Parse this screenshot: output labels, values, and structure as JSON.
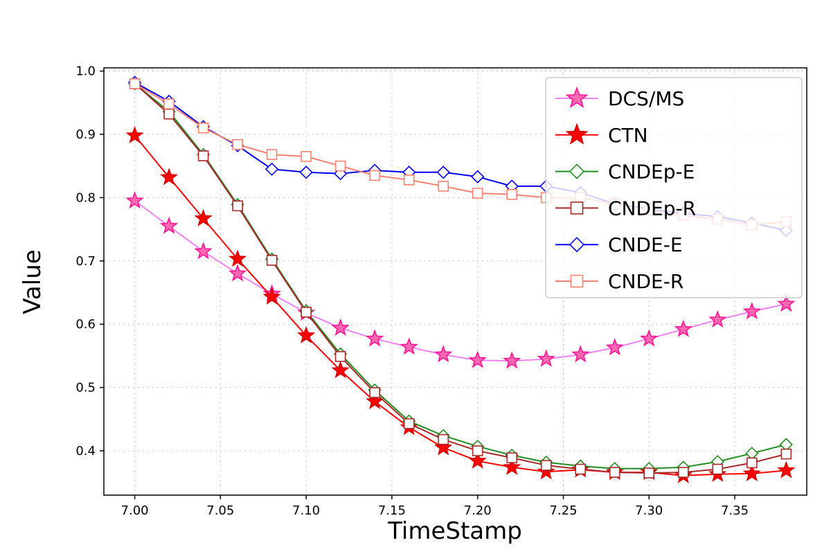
{
  "chart_data": {
    "type": "line",
    "title": "",
    "xlabel": "TimeStamp",
    "ylabel": "Value",
    "xlim": [
      6.982,
      7.392
    ],
    "ylim": [
      0.33,
      1.005
    ],
    "grid": true,
    "grid_color": "#BFBFBF",
    "background_color": "#FFFFFF",
    "legend_position": "upper right",
    "legend_border_color": "#CCCCCC",
    "x_ticks": {
      "values": [
        7.0,
        7.05,
        7.1,
        7.15,
        7.2,
        7.25,
        7.3,
        7.35
      ],
      "labels": [
        "7.00",
        "7.05",
        "7.10",
        "7.15",
        "7.20",
        "7.25",
        "7.30",
        "7.35"
      ]
    },
    "y_ticks": {
      "values": [
        0.4,
        0.5,
        0.6,
        0.7,
        0.8,
        0.9,
        1.0
      ],
      "labels": [
        "0.4",
        "0.5",
        "0.6",
        "0.7",
        "0.8",
        "0.9",
        "1.0"
      ]
    },
    "x": [
      7.0,
      7.02,
      7.04,
      7.06,
      7.08,
      7.1,
      7.12,
      7.14,
      7.16,
      7.18,
      7.2,
      7.22,
      7.24,
      7.26,
      7.28,
      7.3,
      7.32,
      7.34,
      7.36,
      7.38
    ],
    "series": [
      {
        "name": "DCS/MS",
        "marker": "star",
        "line_color": "#EE82EE",
        "marker_face": "#FF69B4",
        "marker_edge": "#FF1493",
        "values": [
          0.795,
          0.755,
          0.715,
          0.68,
          0.648,
          0.618,
          0.594,
          0.577,
          0.564,
          0.552,
          0.543,
          0.542,
          0.545,
          0.552,
          0.563,
          0.577,
          0.592,
          0.607,
          0.62,
          0.632
        ]
      },
      {
        "name": "CTN",
        "marker": "star",
        "line_color": "#FF0000",
        "marker_face": "#FF0000",
        "marker_edge": "#D40000",
        "values": [
          0.898,
          0.832,
          0.767,
          0.703,
          0.643,
          0.582,
          0.527,
          0.478,
          0.437,
          0.405,
          0.384,
          0.374,
          0.367,
          0.37,
          0.366,
          0.366,
          0.361,
          0.363,
          0.364,
          0.369
        ]
      },
      {
        "name": "CNDEp-E",
        "marker": "diamond",
        "line_color": "#228B22",
        "marker_face": "#FFFFFF",
        "marker_edge": "#228B22",
        "values": [
          0.98,
          0.936,
          0.868,
          0.789,
          0.703,
          0.621,
          0.553,
          0.496,
          0.447,
          0.424,
          0.407,
          0.393,
          0.382,
          0.376,
          0.372,
          0.372,
          0.374,
          0.383,
          0.396,
          0.41
        ]
      },
      {
        "name": "CNDEp-R",
        "marker": "square",
        "line_color": "#A52A2A",
        "marker_face": "#FFFFFF",
        "marker_edge": "#A52A2A",
        "values": [
          0.98,
          0.932,
          0.866,
          0.787,
          0.701,
          0.619,
          0.549,
          0.492,
          0.443,
          0.418,
          0.4,
          0.389,
          0.377,
          0.371,
          0.366,
          0.365,
          0.366,
          0.371,
          0.381,
          0.395
        ]
      },
      {
        "name": "CNDE-E",
        "marker": "diamond",
        "line_color": "#0000EE",
        "marker_face": "#FFFFFF",
        "marker_edge": "#0000EE",
        "values": [
          0.982,
          0.952,
          0.912,
          0.882,
          0.845,
          0.84,
          0.838,
          0.843,
          0.84,
          0.84,
          0.833,
          0.818,
          0.818,
          0.808,
          0.79,
          0.782,
          0.775,
          0.77,
          0.76,
          0.748
        ]
      },
      {
        "name": "CNDE-R",
        "marker": "square",
        "line_color": "#FA8072",
        "marker_face": "#FFFFFF",
        "marker_edge": "#FA8072",
        "values": [
          0.98,
          0.948,
          0.91,
          0.884,
          0.868,
          0.865,
          0.85,
          0.835,
          0.828,
          0.818,
          0.807,
          0.805,
          0.8,
          0.8,
          0.79,
          0.78,
          0.772,
          0.766,
          0.757,
          0.762
        ]
      }
    ]
  }
}
